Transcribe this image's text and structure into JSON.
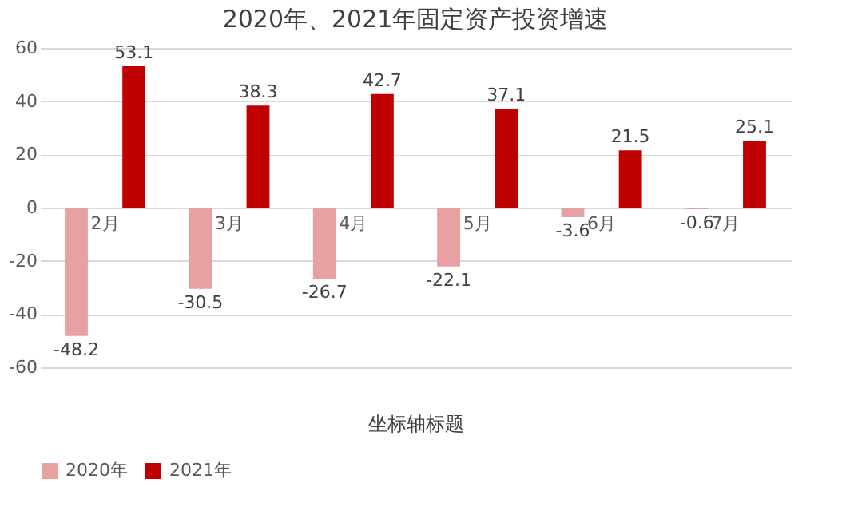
{
  "chart_data": {
    "type": "bar",
    "title": "2020年、2021年固定资产投资增速",
    "xlabel": "坐标轴标题",
    "categories": [
      "2月",
      "3月",
      "4月",
      "5月",
      "6月",
      "7月"
    ],
    "series": [
      {
        "name": "2020年",
        "color": "#e8a0a0",
        "values": [
          -48.2,
          -30.5,
          -26.7,
          -22.1,
          -3.6,
          -0.6
        ]
      },
      {
        "name": "2021年",
        "color": "#c00000",
        "values": [
          53.1,
          38.3,
          42.7,
          37.1,
          21.5,
          25.1
        ]
      }
    ],
    "ylim": [
      -60,
      60
    ],
    "yticks": [
      -60,
      -40,
      -20,
      0,
      20,
      40,
      60
    ],
    "grid": "y",
    "legend": "bottom",
    "data_labels": true
  }
}
